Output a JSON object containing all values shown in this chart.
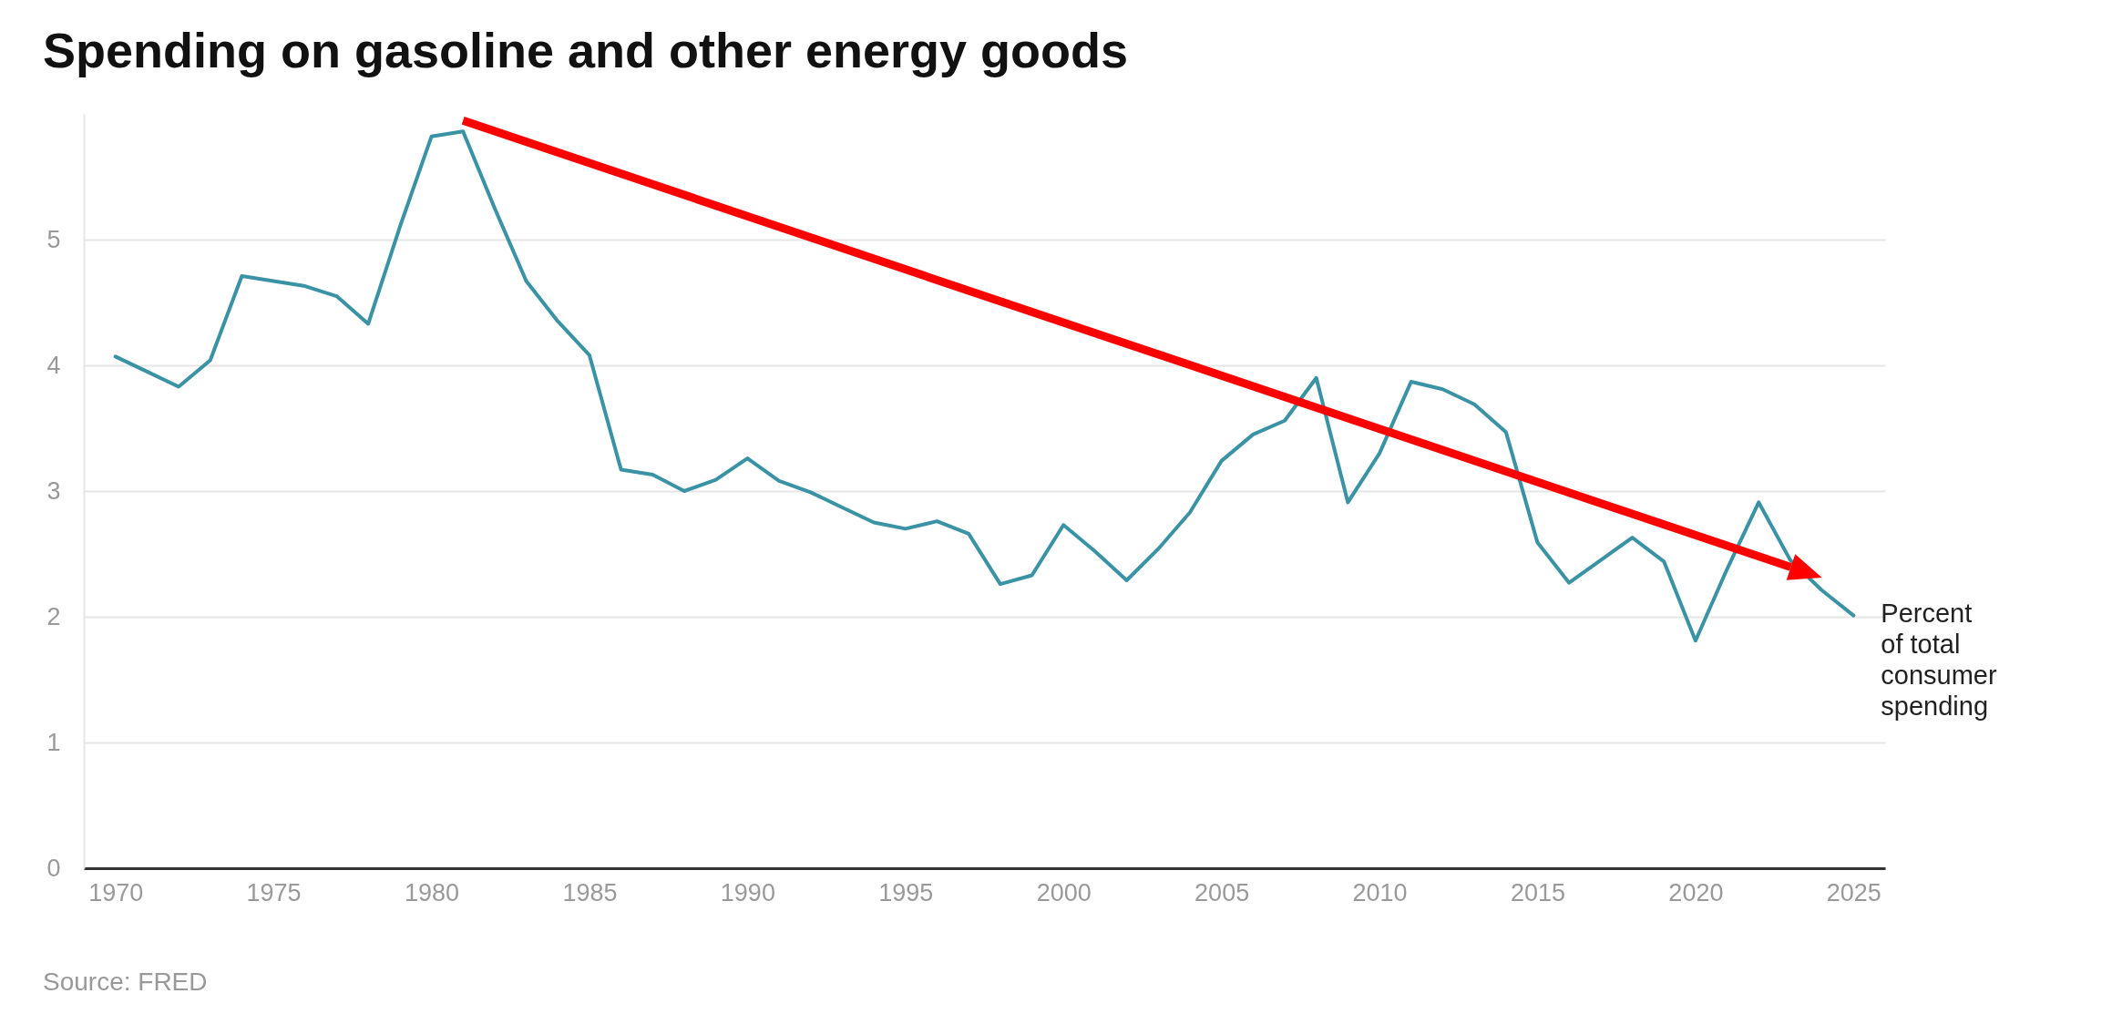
{
  "chart_data": {
    "type": "line",
    "title": "Spending on gasoline and other energy goods",
    "x": [
      1970,
      1971,
      1972,
      1973,
      1974,
      1975,
      1976,
      1977,
      1978,
      1979,
      1980,
      1981,
      1982,
      1983,
      1984,
      1985,
      1986,
      1987,
      1988,
      1989,
      1990,
      1991,
      1992,
      1993,
      1994,
      1995,
      1996,
      1997,
      1998,
      1999,
      2000,
      2001,
      2002,
      2003,
      2004,
      2005,
      2006,
      2007,
      2008,
      2009,
      2010,
      2011,
      2012,
      2013,
      2014,
      2015,
      2016,
      2017,
      2018,
      2019,
      2020,
      2021,
      2022,
      2023,
      2024,
      2025
    ],
    "series": [
      {
        "name": "Percent of total consumer spending",
        "color": "#3a93a5",
        "values": [
          4.07,
          3.95,
          3.83,
          4.04,
          4.71,
          4.67,
          4.63,
          4.55,
          4.33,
          5.1,
          5.82,
          5.86,
          5.25,
          4.67,
          4.35,
          4.08,
          3.17,
          3.13,
          3.0,
          3.09,
          3.26,
          3.08,
          2.99,
          2.87,
          2.75,
          2.7,
          2.76,
          2.66,
          2.26,
          2.33,
          2.73,
          2.52,
          2.29,
          2.54,
          2.83,
          3.24,
          3.45,
          3.56,
          3.9,
          2.91,
          3.3,
          3.87,
          3.81,
          3.69,
          3.47,
          2.59,
          2.27,
          2.45,
          2.63,
          2.44,
          1.81,
          2.38,
          2.91,
          2.45,
          2.21,
          2.01
        ]
      }
    ],
    "xlim": [
      1969,
      2026
    ],
    "ylim": [
      0,
      6
    ],
    "xticks": [
      1970,
      1975,
      1980,
      1985,
      1990,
      1995,
      2000,
      2005,
      2010,
      2015,
      2020,
      2025
    ],
    "yticks": [
      0,
      1,
      2,
      3,
      4,
      5
    ],
    "grid": "y",
    "annotations": [
      "Source: FRED"
    ]
  }
}
